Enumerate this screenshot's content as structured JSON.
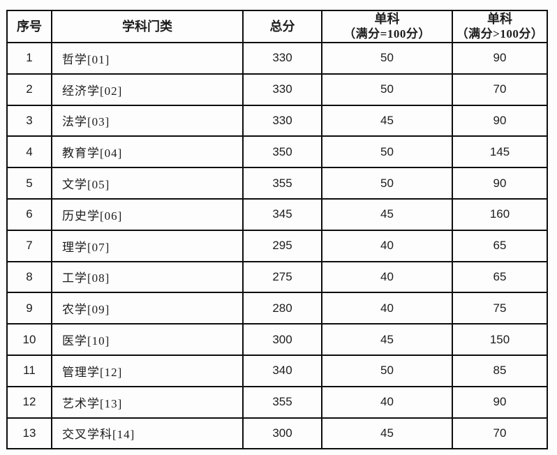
{
  "page": {
    "background_color": "#fdfdfd",
    "border_color": "#0d0d0d",
    "text_color": "#1c1c1c"
  },
  "table": {
    "columns": [
      {
        "label": "序号"
      },
      {
        "label": "学科门类"
      },
      {
        "label": "总分"
      },
      {
        "label": "单科",
        "sublabel": "（满分=100分）"
      },
      {
        "label": "单科",
        "sublabel": "（满分>100分）"
      }
    ],
    "rows": [
      {
        "no": "1",
        "category": "哲学[01]",
        "total": "330",
        "single_100": "50",
        "single_over_100": "90"
      },
      {
        "no": "2",
        "category": "经济学[02]",
        "total": "330",
        "single_100": "50",
        "single_over_100": "70"
      },
      {
        "no": "3",
        "category": "法学[03]",
        "total": "330",
        "single_100": "45",
        "single_over_100": "90"
      },
      {
        "no": "4",
        "category": "教育学[04]",
        "total": "350",
        "single_100": "50",
        "single_over_100": "145"
      },
      {
        "no": "5",
        "category": "文学[05]",
        "total": "355",
        "single_100": "50",
        "single_over_100": "90"
      },
      {
        "no": "6",
        "category": "历史学[06]",
        "total": "345",
        "single_100": "45",
        "single_over_100": "160"
      },
      {
        "no": "7",
        "category": "理学[07]",
        "total": "295",
        "single_100": "40",
        "single_over_100": "65"
      },
      {
        "no": "8",
        "category": "工学[08]",
        "total": "275",
        "single_100": "40",
        "single_over_100": "65"
      },
      {
        "no": "9",
        "category": "农学[09]",
        "total": "280",
        "single_100": "40",
        "single_over_100": "75"
      },
      {
        "no": "10",
        "category": "医学[10]",
        "total": "300",
        "single_100": "45",
        "single_over_100": "150"
      },
      {
        "no": "11",
        "category": "管理学[12]",
        "total": "340",
        "single_100": "50",
        "single_over_100": "85"
      },
      {
        "no": "12",
        "category": "艺术学[13]",
        "total": "355",
        "single_100": "40",
        "single_over_100": "90"
      },
      {
        "no": "13",
        "category": "交叉学科[14]",
        "total": "300",
        "single_100": "45",
        "single_over_100": "70"
      }
    ]
  }
}
